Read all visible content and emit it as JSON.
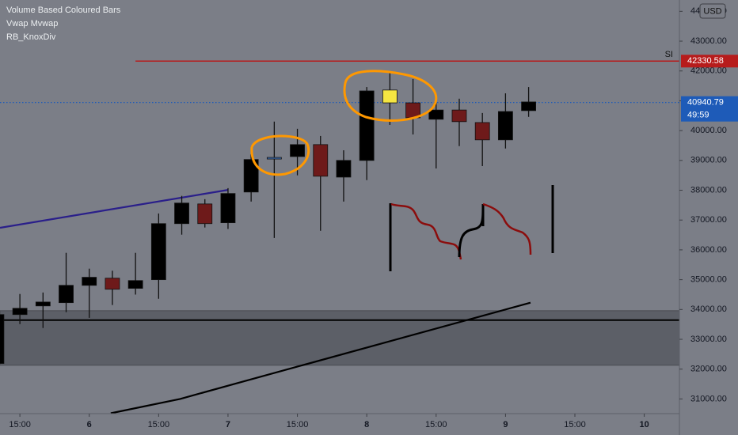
{
  "chart_data": {
    "type": "candlestick",
    "legend": [
      "Volume Based Coloured Bars",
      "Vwap Mvwap",
      "RB_KnoxDiv"
    ],
    "currency": "USD",
    "x": [
      0,
      1,
      2,
      3,
      4,
      5,
      6,
      7,
      8,
      9,
      10,
      11,
      12,
      13,
      14,
      15,
      16,
      17,
      18,
      19,
      20,
      21,
      22,
      23
    ],
    "open": [
      32190,
      33830,
      34120,
      34230,
      34810,
      35050,
      34710,
      35000,
      36880,
      37540,
      36910,
      37940,
      39050,
      39130,
      39530,
      38440,
      39000,
      40930,
      40930,
      40690,
      40690,
      40270,
      39690,
      40670
    ],
    "high": [
      33900,
      34520,
      34570,
      35900,
      35370,
      35300,
      35900,
      37220,
      37810,
      37700,
      38070,
      39210,
      40300,
      40060,
      39820,
      39340,
      41460,
      41990,
      41730,
      41070,
      41070,
      40590,
      41250,
      41460
    ],
    "low": [
      32190,
      33510,
      33380,
      33910,
      33720,
      34150,
      34500,
      34360,
      36510,
      36750,
      36700,
      37620,
      36400,
      38500,
      36640,
      37620,
      38340,
      40190,
      39870,
      38730,
      39480,
      38810,
      39400,
      40460
    ],
    "close": [
      33830,
      34040,
      34250,
      34810,
      35080,
      34680,
      34970,
      36880,
      37570,
      36880,
      37890,
      39030,
      39100,
      39530,
      38470,
      39000,
      41330,
      41360,
      40430,
      40380,
      40300,
      39690,
      40640,
      40960
    ],
    "colors": [
      "#000000",
      "#000000",
      "#000000",
      "#000000",
      "#000000",
      "#6e1a1a",
      "#000000",
      "#000000",
      "#000000",
      "#6e1a1a",
      "#000000",
      "#000000",
      "#3d6fb5",
      "#000000",
      "#6e1a1a",
      "#000000",
      "#000000",
      "#f5e642",
      "#6e1a1a",
      "#000000",
      "#6e1a1a",
      "#6e1a1a",
      "#000000",
      "#000000"
    ],
    "xlim": [
      0.14,
      29.52
    ],
    "ylim": [
      30507,
      44380
    ],
    "xticks": [
      {
        "value": 1,
        "label": "15:00"
      },
      {
        "value": 4,
        "label": "6"
      },
      {
        "value": 7,
        "label": "15:00"
      },
      {
        "value": 10,
        "label": "7"
      },
      {
        "value": 13,
        "label": "15:00"
      },
      {
        "value": 16,
        "label": "8"
      },
      {
        "value": 19,
        "label": "15:00"
      },
      {
        "value": 22,
        "label": "9"
      },
      {
        "value": 25,
        "label": "15:00"
      },
      {
        "value": 28,
        "label": "10"
      }
    ],
    "yticks": [
      {
        "value": 31000,
        "label": "31000.00"
      },
      {
        "value": 32000,
        "label": "32000.00"
      },
      {
        "value": 33000,
        "label": "33000.00"
      },
      {
        "value": 34000,
        "label": "34000.00"
      },
      {
        "value": 35000,
        "label": "35000.00"
      },
      {
        "value": 36000,
        "label": "36000.00"
      },
      {
        "value": 37000,
        "label": "37000.00"
      },
      {
        "value": 38000,
        "label": "38000.00"
      },
      {
        "value": 39000,
        "label": "39000.00"
      },
      {
        "value": 40000,
        "label": "40000.00"
      },
      {
        "value": 41000,
        "label": "41000.00"
      },
      {
        "value": 42000,
        "label": "42000.00"
      },
      {
        "value": 43000,
        "label": "43000.00"
      },
      {
        "value": 44000,
        "label": "44000.00"
      }
    ],
    "lines": [
      {
        "color": "#2a1f8a",
        "x": [
          0.14,
          10
        ],
        "values": [
          36740,
          38010
        ]
      },
      {
        "color": "#000000",
        "x": [
          4.93,
          7.93,
          10.4,
          23.08
        ],
        "values": [
          30520,
          31000,
          31530,
          34230
        ]
      }
    ],
    "zone": [
      32130,
      33960
    ],
    "support": 33645,
    "alert": {
      "value": 42330.58,
      "from": 6,
      "text": "SI",
      "color": "#b71c1c"
    },
    "last": {
      "value": 40940.79,
      "countdown": "49:59",
      "color": "#1e5bb8"
    }
  }
}
